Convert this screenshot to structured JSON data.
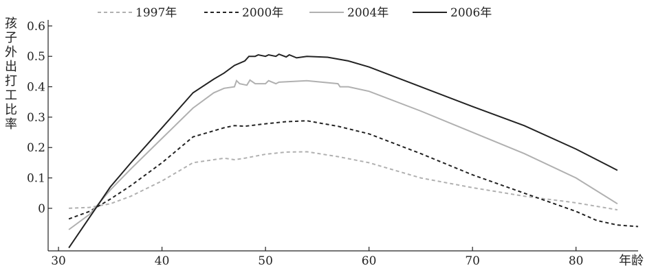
{
  "chart_data": {
    "type": "line",
    "ylabel": "孩子外出打工比率",
    "xlabel": "年龄",
    "xlim": [
      29,
      86
    ],
    "ylim": [
      -0.14,
      0.62
    ],
    "x_ticks": [
      30,
      40,
      50,
      60,
      70,
      80
    ],
    "x_tick_labels": [
      "30",
      "40",
      "50",
      "60",
      "70",
      "80"
    ],
    "y_ticks": [
      0,
      0.1,
      0.2,
      0.3,
      0.4,
      0.5,
      0.6
    ],
    "y_tick_labels": [
      "0",
      "0.1",
      "0.2",
      "0.3",
      "0.4",
      "0.5",
      "0.6"
    ],
    "legend_position": "top",
    "series": [
      {
        "name": "1997年",
        "color": "#b0b0b0",
        "dash": "dashed",
        "points": [
          [
            31,
            0.0
          ],
          [
            33,
            0.003
          ],
          [
            35,
            0.015
          ],
          [
            37,
            0.04
          ],
          [
            40,
            0.09
          ],
          [
            43,
            0.15
          ],
          [
            46,
            0.165
          ],
          [
            47,
            0.16
          ],
          [
            48,
            0.165
          ],
          [
            50,
            0.178
          ],
          [
            52,
            0.185
          ],
          [
            54,
            0.186
          ],
          [
            57,
            0.17
          ],
          [
            60,
            0.15
          ],
          [
            65,
            0.1
          ],
          [
            70,
            0.068
          ],
          [
            75,
            0.04
          ],
          [
            80,
            0.018
          ],
          [
            84,
            -0.005
          ]
        ]
      },
      {
        "name": "2000年",
        "color": "#222222",
        "dash": "dashed",
        "points": [
          [
            31,
            -0.035
          ],
          [
            33,
            -0.01
          ],
          [
            35,
            0.03
          ],
          [
            37,
            0.075
          ],
          [
            40,
            0.15
          ],
          [
            43,
            0.235
          ],
          [
            46,
            0.265
          ],
          [
            47,
            0.272
          ],
          [
            48,
            0.27
          ],
          [
            50,
            0.278
          ],
          [
            52,
            0.285
          ],
          [
            54,
            0.288
          ],
          [
            57,
            0.27
          ],
          [
            60,
            0.245
          ],
          [
            65,
            0.18
          ],
          [
            70,
            0.11
          ],
          [
            75,
            0.05
          ],
          [
            80,
            -0.01
          ],
          [
            82,
            -0.04
          ],
          [
            84,
            -0.055
          ],
          [
            86,
            -0.06
          ]
        ]
      },
      {
        "name": "2004年",
        "color": "#b0b0b0",
        "dash": "solid",
        "points": [
          [
            31,
            -0.07
          ],
          [
            33,
            -0.02
          ],
          [
            35,
            0.06
          ],
          [
            37,
            0.13
          ],
          [
            40,
            0.23
          ],
          [
            43,
            0.33
          ],
          [
            45,
            0.38
          ],
          [
            46,
            0.395
          ],
          [
            47,
            0.4
          ],
          [
            47.2,
            0.42
          ],
          [
            47.5,
            0.41
          ],
          [
            48.2,
            0.405
          ],
          [
            48.5,
            0.422
          ],
          [
            49,
            0.41
          ],
          [
            50,
            0.41
          ],
          [
            50.3,
            0.42
          ],
          [
            51,
            0.41
          ],
          [
            51.3,
            0.415
          ],
          [
            54,
            0.42
          ],
          [
            57,
            0.41
          ],
          [
            57.2,
            0.4
          ],
          [
            58,
            0.4
          ],
          [
            60,
            0.385
          ],
          [
            65,
            0.32
          ],
          [
            70,
            0.25
          ],
          [
            75,
            0.18
          ],
          [
            80,
            0.1
          ],
          [
            84,
            0.015
          ]
        ]
      },
      {
        "name": "2006年",
        "color": "#222222",
        "dash": "solid",
        "points": [
          [
            31,
            -0.13
          ],
          [
            33,
            -0.03
          ],
          [
            35,
            0.07
          ],
          [
            37,
            0.15
          ],
          [
            40,
            0.265
          ],
          [
            43,
            0.38
          ],
          [
            45,
            0.425
          ],
          [
            46,
            0.445
          ],
          [
            47,
            0.47
          ],
          [
            48,
            0.485
          ],
          [
            48.4,
            0.5
          ],
          [
            49,
            0.5
          ],
          [
            49.3,
            0.505
          ],
          [
            50,
            0.5
          ],
          [
            50.3,
            0.505
          ],
          [
            51,
            0.5
          ],
          [
            51.3,
            0.507
          ],
          [
            52,
            0.498
          ],
          [
            52.3,
            0.505
          ],
          [
            53,
            0.495
          ],
          [
            54,
            0.5
          ],
          [
            56,
            0.497
          ],
          [
            58,
            0.485
          ],
          [
            60,
            0.465
          ],
          [
            65,
            0.4
          ],
          [
            70,
            0.335
          ],
          [
            75,
            0.272
          ],
          [
            80,
            0.195
          ],
          [
            84,
            0.125
          ]
        ]
      }
    ]
  }
}
